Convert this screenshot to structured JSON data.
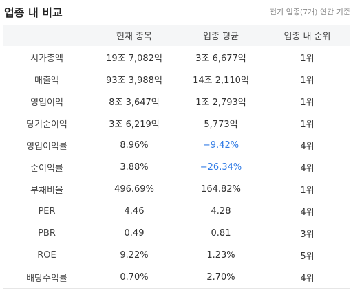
{
  "header": {
    "title": "업종 내 비교",
    "note": "전기 업종(7개) 연간 기준"
  },
  "table": {
    "columns": [
      "",
      "현재 종목",
      "업종 평균",
      "업종 내 순위"
    ],
    "rows": [
      {
        "label": "시가총액",
        "current": "19조 7,082억",
        "average": "3조 6,677억",
        "rank": "1위",
        "average_negative": false
      },
      {
        "label": "매출액",
        "current": "93조 3,988억",
        "average": "14조 2,110억",
        "rank": "1위",
        "average_negative": false
      },
      {
        "label": "영업이익",
        "current": "8조 3,647억",
        "average": "1조 2,793억",
        "rank": "1위",
        "average_negative": false
      },
      {
        "label": "당기순이익",
        "current": "3조 6,219억",
        "average": "5,773억",
        "rank": "1위",
        "average_negative": false
      },
      {
        "label": "영업이익률",
        "current": "8.96%",
        "average": "−9.42%",
        "rank": "4위",
        "average_negative": true
      },
      {
        "label": "순이익률",
        "current": "3.88%",
        "average": "−26.34%",
        "rank": "4위",
        "average_negative": true
      },
      {
        "label": "부채비율",
        "current": "496.69%",
        "average": "164.82%",
        "rank": "1위",
        "average_negative": false
      },
      {
        "label": "PER",
        "current": "4.46",
        "average": "4.28",
        "rank": "4위",
        "average_negative": false
      },
      {
        "label": "PBR",
        "current": "0.49",
        "average": "0.81",
        "rank": "3위",
        "average_negative": false
      },
      {
        "label": "ROE",
        "current": "9.22%",
        "average": "1.23%",
        "rank": "5위",
        "average_negative": false
      },
      {
        "label": "배당수익률",
        "current": "0.70%",
        "average": "2.70%",
        "rank": "4위",
        "average_negative": false
      }
    ]
  },
  "colors": {
    "negative": "#2f7ae5",
    "header_bg": "#f5f6f7"
  }
}
